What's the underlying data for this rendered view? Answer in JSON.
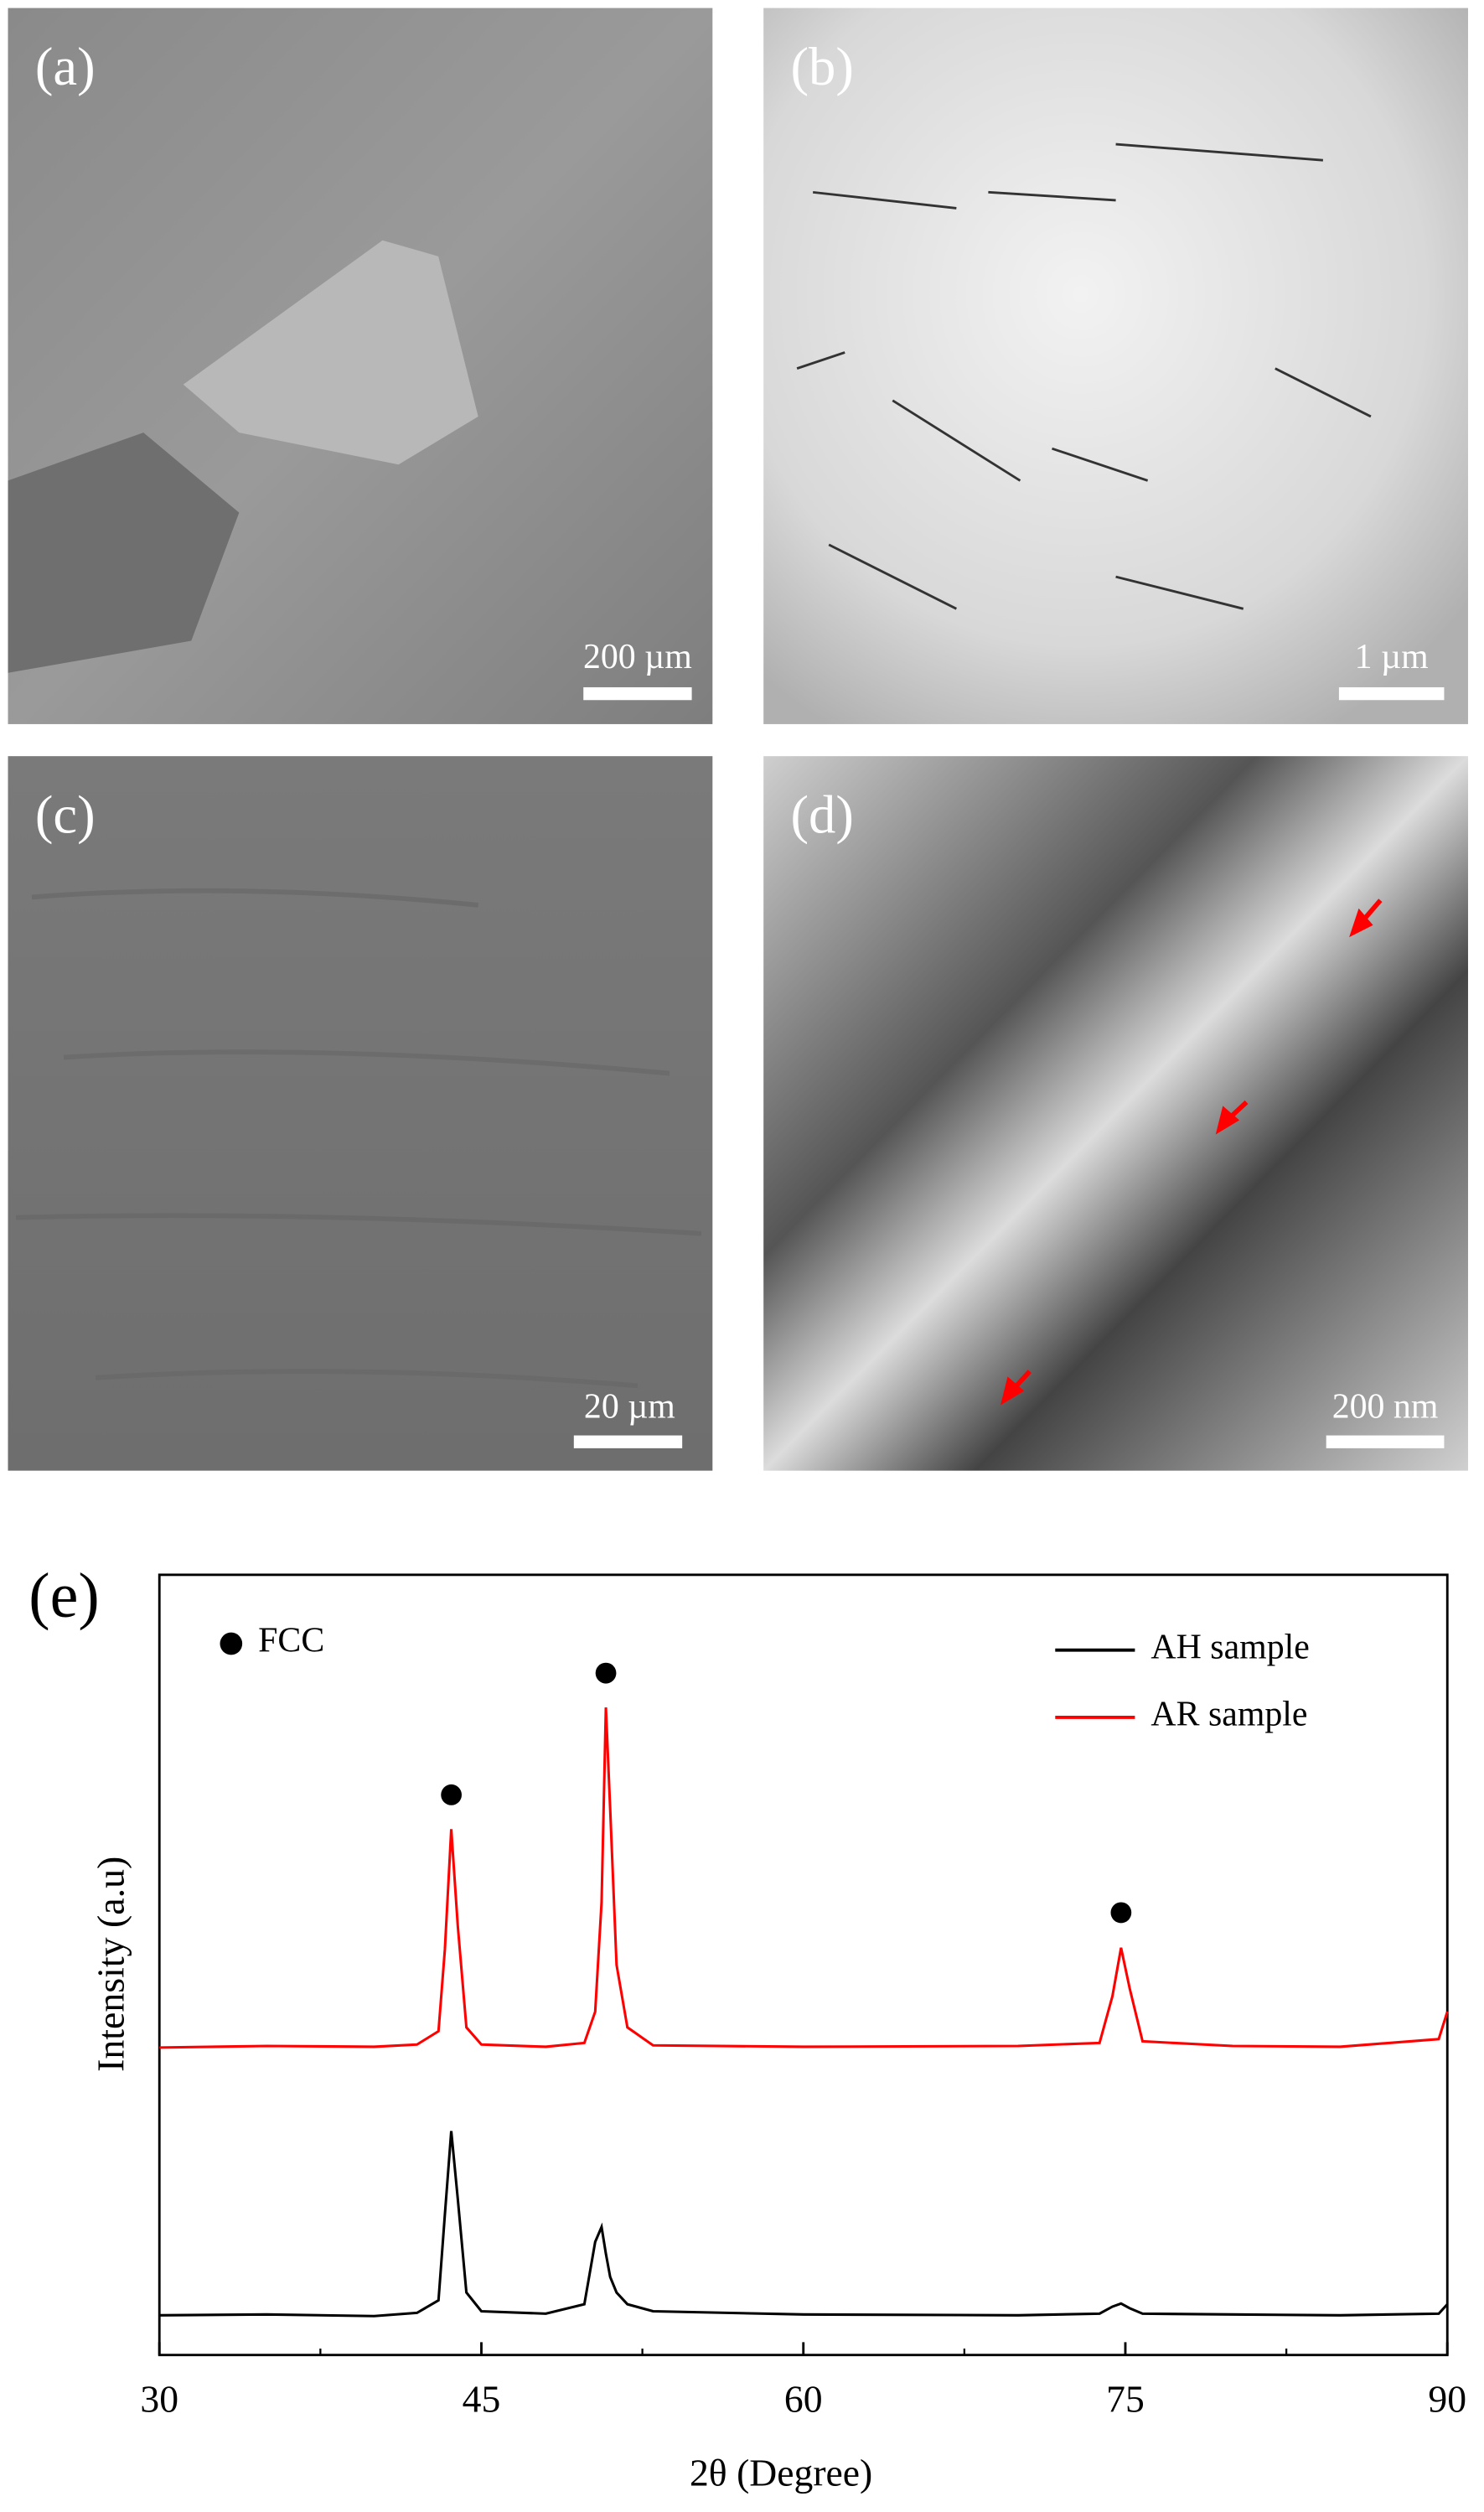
{
  "panels": [
    {
      "label": "(a)",
      "scale_bar": "200 µm"
    },
    {
      "label": "(b)",
      "scale_bar": "1 µm"
    },
    {
      "label": "(c)",
      "scale_bar": "20 µm"
    },
    {
      "label": "(d)",
      "scale_bar": "200 nm"
    }
  ],
  "chart_data": {
    "type": "line",
    "panel_label": "(e)",
    "x_label": "2θ (Degree)",
    "y_label": "Intensity (a.u)",
    "annotation": "FCC",
    "peak_markers": {
      "x": [
        43.6,
        50.8,
        74.8
      ],
      "y": [
        71.8,
        87.4,
        56.7
      ]
    },
    "xlim": [
      30,
      90
    ],
    "xticks": [
      30,
      45,
      60,
      75,
      90
    ],
    "xticks_minor": [
      37.5,
      52.5,
      67.5,
      82.5
    ],
    "ylim": [
      0,
      100
    ],
    "legend": "upper right",
    "x": [
      30,
      35,
      40,
      42,
      43,
      43.3,
      43.6,
      43.9,
      44.3,
      45,
      48,
      49.8,
      50.3,
      50.6,
      50.8,
      51.0,
      51.3,
      51.8,
      53,
      60,
      70,
      73.8,
      74.4,
      74.8,
      75.2,
      75.8,
      80,
      85,
      89.6,
      90
    ],
    "series": [
      {
        "name": "AH sample",
        "color": "#000000",
        "values": [
          5.1,
          5.2,
          5.0,
          5.4,
          7,
          18,
          28.7,
          20,
          8,
          5.6,
          5.3,
          6.5,
          14.5,
          16.4,
          13,
          10,
          8,
          6.5,
          5.6,
          5.2,
          5.1,
          5.3,
          6.2,
          6.6,
          6,
          5.3,
          5.2,
          5.1,
          5.3,
          6.5
        ]
      },
      {
        "name": "AR sample",
        "color": "#ff0000",
        "values": [
          39.4,
          39.6,
          39.5,
          39.8,
          41.5,
          52,
          67.4,
          55,
          42,
          39.8,
          39.5,
          40,
          44,
          58,
          83,
          70,
          50,
          42,
          39.7,
          39.5,
          39.6,
          40,
          46,
          52.2,
          47,
          40.2,
          39.6,
          39.5,
          40.5,
          44
        ]
      }
    ]
  }
}
